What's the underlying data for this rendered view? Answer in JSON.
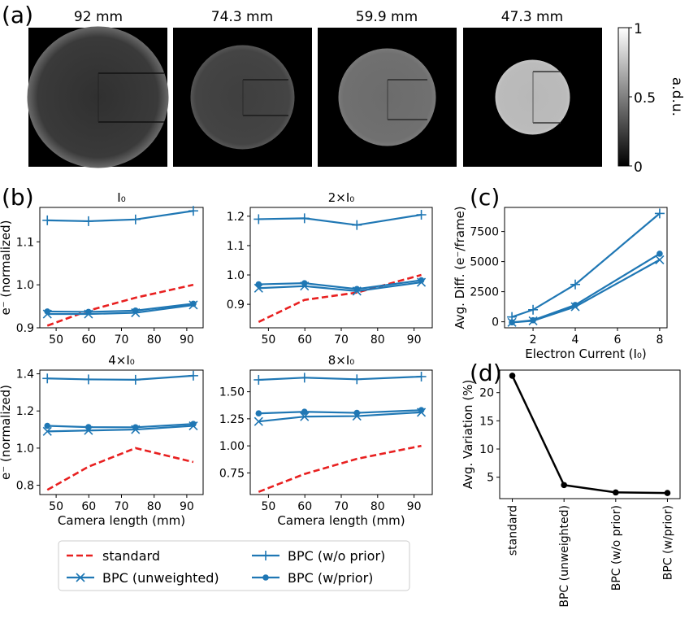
{
  "panel_labels": {
    "a": "(a)",
    "b": "(b)",
    "c": "(c)",
    "d": "(d)"
  },
  "images": {
    "titles": [
      "92 mm",
      "74.3 mm",
      "59.9 mm",
      "47.3 mm"
    ],
    "colorbar": {
      "label": "a.d.u.",
      "ticks": [
        "1",
        "0.5",
        "0"
      ]
    }
  },
  "legend": {
    "entries": [
      {
        "key": "standard",
        "label": "standard",
        "color": "#e82020",
        "style": "dashed",
        "marker": "none"
      },
      {
        "key": "wo",
        "label": "BPC (w/o prior)",
        "color": "#1f77b4",
        "style": "solid",
        "marker": "plus"
      },
      {
        "key": "unw",
        "label": "BPC (unweighted)",
        "color": "#1f77b4",
        "style": "solid",
        "marker": "x"
      },
      {
        "key": "wp",
        "label": "BPC (w/prior)",
        "color": "#1f77b4",
        "style": "solid",
        "marker": "dot"
      }
    ]
  },
  "chart_data": [
    {
      "id": "b1",
      "type": "line",
      "title": "I₀",
      "xlabel": "",
      "ylabel": "e⁻ (normalized)",
      "x": [
        47.3,
        59.9,
        74.3,
        92
      ],
      "xlim": [
        45,
        95
      ],
      "ylim": [
        0.9,
        1.18
      ],
      "xticks": [
        50,
        60,
        70,
        80,
        90
      ],
      "yticks": [
        0.9,
        1.0,
        1.1
      ],
      "ytick_labels": [
        "0.9",
        "1.0",
        "1.1"
      ],
      "series": [
        {
          "key": "standard",
          "values": [
            0.905,
            0.94,
            0.97,
            1.0
          ]
        },
        {
          "key": "wo",
          "values": [
            1.15,
            1.148,
            1.152,
            1.172
          ]
        },
        {
          "key": "unw",
          "values": [
            0.932,
            0.932,
            0.935,
            0.953
          ]
        },
        {
          "key": "wp",
          "values": [
            0.938,
            0.937,
            0.94,
            0.956
          ]
        }
      ]
    },
    {
      "id": "b2",
      "type": "line",
      "title": "2×I₀",
      "xlabel": "",
      "ylabel": "",
      "x": [
        47.3,
        59.9,
        74.3,
        92
      ],
      "xlim": [
        45,
        95
      ],
      "ylim": [
        0.82,
        1.23
      ],
      "xticks": [
        50,
        60,
        70,
        80,
        90
      ],
      "yticks": [
        0.9,
        1.0,
        1.1,
        1.2
      ],
      "ytick_labels": [
        "0.9",
        "1.0",
        "1.1",
        "1.2"
      ],
      "series": [
        {
          "key": "standard",
          "values": [
            0.84,
            0.915,
            0.94,
            1.0
          ]
        },
        {
          "key": "wo",
          "values": [
            1.19,
            1.193,
            1.17,
            1.205
          ]
        },
        {
          "key": "unw",
          "values": [
            0.955,
            0.962,
            0.945,
            0.975
          ]
        },
        {
          "key": "wp",
          "values": [
            0.968,
            0.972,
            0.952,
            0.982
          ]
        }
      ]
    },
    {
      "id": "b3",
      "type": "line",
      "title": "4×I₀",
      "xlabel": "Camera length (mm)",
      "ylabel": "e⁻ (normalized)",
      "x": [
        47.3,
        59.9,
        74.3,
        92
      ],
      "xlim": [
        45,
        95
      ],
      "ylim": [
        0.75,
        1.42
      ],
      "xticks": [
        50,
        60,
        70,
        80,
        90
      ],
      "yticks": [
        0.8,
        1.0,
        1.2,
        1.4
      ],
      "ytick_labels": [
        "0.8",
        "1.0",
        "1.2",
        "1.4"
      ],
      "series": [
        {
          "key": "standard",
          "values": [
            0.775,
            0.9,
            1.0,
            0.925
          ]
        },
        {
          "key": "wo",
          "values": [
            1.375,
            1.37,
            1.368,
            1.39
          ]
        },
        {
          "key": "unw",
          "values": [
            1.09,
            1.095,
            1.1,
            1.12
          ]
        },
        {
          "key": "wp",
          "values": [
            1.12,
            1.113,
            1.112,
            1.13
          ]
        }
      ]
    },
    {
      "id": "b4",
      "type": "line",
      "title": "8×I₀",
      "xlabel": "Camera length (mm)",
      "ylabel": "",
      "x": [
        47.3,
        59.9,
        74.3,
        92
      ],
      "xlim": [
        45,
        95
      ],
      "ylim": [
        0.55,
        1.7
      ],
      "xticks": [
        50,
        60,
        70,
        80,
        90
      ],
      "yticks": [
        0.75,
        1.0,
        1.25,
        1.5
      ],
      "ytick_labels": [
        "0.75",
        "1.00",
        "1.25",
        "1.50"
      ],
      "series": [
        {
          "key": "standard",
          "values": [
            0.575,
            0.74,
            0.88,
            1.0
          ]
        },
        {
          "key": "wo",
          "values": [
            1.61,
            1.63,
            1.615,
            1.64
          ]
        },
        {
          "key": "unw",
          "values": [
            1.225,
            1.27,
            1.275,
            1.31
          ]
        },
        {
          "key": "wp",
          "values": [
            1.3,
            1.315,
            1.305,
            1.33
          ]
        }
      ]
    },
    {
      "id": "c",
      "type": "line",
      "title": "",
      "xlabel": "Electron Current (I₀)",
      "ylabel": "Avg. Diff. (e⁻/frame)",
      "x": [
        1,
        2,
        4,
        8
      ],
      "xlim": [
        0.65,
        8.35
      ],
      "ylim": [
        -500,
        9500
      ],
      "xticks": [
        2,
        4,
        6,
        8
      ],
      "yticks": [
        0,
        2500,
        5000,
        7500
      ],
      "ytick_labels": [
        "0",
        "2500",
        "5000",
        "7500"
      ],
      "series": [
        {
          "key": "wo",
          "values": [
            400,
            1000,
            3100,
            9000
          ]
        },
        {
          "key": "unw",
          "values": [
            -50,
            80,
            1250,
            5150
          ]
        },
        {
          "key": "wp",
          "values": [
            -50,
            130,
            1400,
            5650
          ]
        }
      ]
    },
    {
      "id": "d",
      "type": "line",
      "title": "",
      "xlabel": "",
      "ylabel": "Avg. Variation (%)",
      "categories": [
        "standard",
        "BPC (unweighted)",
        "BPC (w/o prior)",
        "BPC (w/prior)"
      ],
      "ylim": [
        1.2,
        24
      ],
      "yticks": [
        5,
        10,
        15,
        20
      ],
      "ytick_labels": [
        "5",
        "10",
        "15",
        "20"
      ],
      "values": [
        23,
        3.6,
        2.3,
        2.2
      ],
      "color": "#000000"
    }
  ]
}
